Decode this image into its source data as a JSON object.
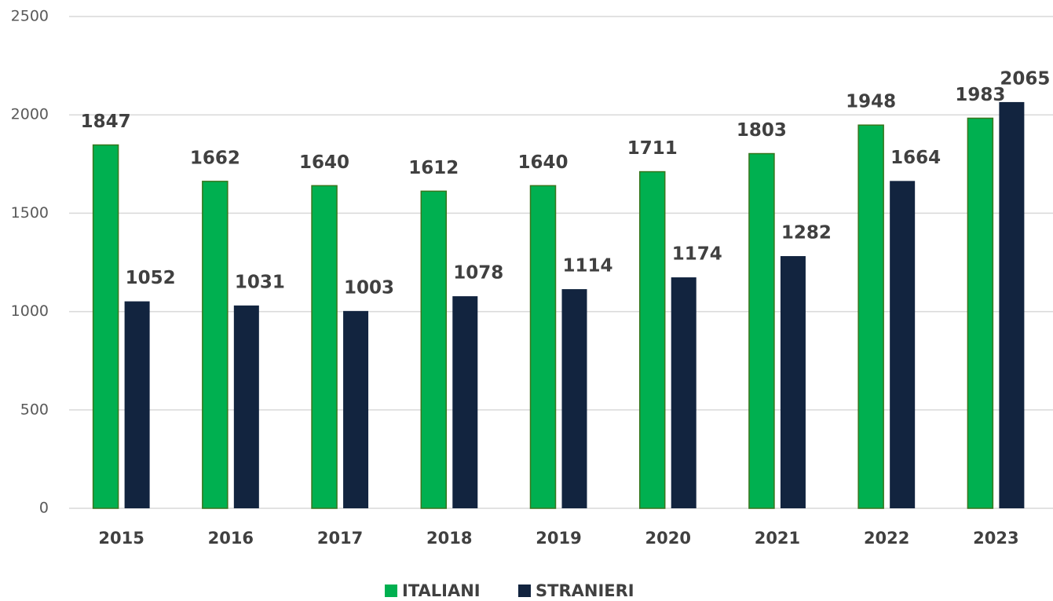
{
  "chart_data": {
    "type": "bar",
    "categories": [
      "2015",
      "2016",
      "2017",
      "2018",
      "2019",
      "2020",
      "2021",
      "2022",
      "2023"
    ],
    "series": [
      {
        "name": "ITALIANI",
        "color": "#00b050",
        "values": [
          1847,
          1662,
          1640,
          1612,
          1640,
          1711,
          1803,
          1948,
          1983
        ]
      },
      {
        "name": "STRANIERI",
        "color": "#12243f",
        "values": [
          1052,
          1031,
          1003,
          1078,
          1114,
          1174,
          1282,
          1664,
          2065
        ]
      }
    ],
    "ylim": [
      0,
      2500
    ],
    "yticks": [
      0,
      500,
      1000,
      1500,
      2000,
      2500
    ],
    "grid": true,
    "legend": "bottom"
  }
}
